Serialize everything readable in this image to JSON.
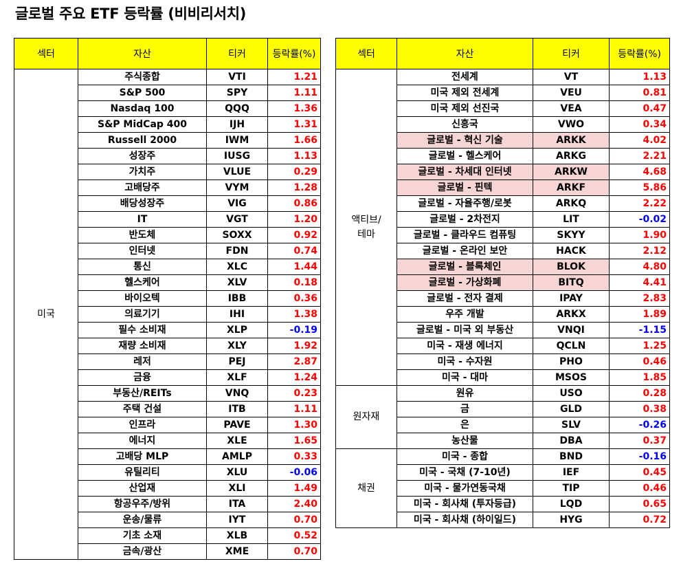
{
  "title": "글로벌 주요 ETF 등락률 (비비리서치)",
  "colors": {
    "header_bg": "#ffff00",
    "positive": "#ff0000",
    "negative": "#0000ff",
    "highlight": "#f8d5d5"
  },
  "headers": {
    "sector": "섹터",
    "asset": "자산",
    "ticker": "티커",
    "rate": "등락률(%)"
  },
  "left_table": {
    "groups": [
      {
        "sector": "미국",
        "rows": [
          {
            "asset": "주식종합",
            "ticker": "VTI",
            "rate": "1.21"
          },
          {
            "asset": "S&P 500",
            "ticker": "SPY",
            "rate": "1.11"
          },
          {
            "asset": "Nasdaq 100",
            "ticker": "QQQ",
            "rate": "1.36"
          },
          {
            "asset": "S&P MidCap 400",
            "ticker": "IJH",
            "rate": "1.31"
          },
          {
            "asset": "Russell 2000",
            "ticker": "IWM",
            "rate": "1.66"
          },
          {
            "asset": "성장주",
            "ticker": "IUSG",
            "rate": "1.13"
          },
          {
            "asset": "가치주",
            "ticker": "VLUE",
            "rate": "0.29"
          },
          {
            "asset": "고배당주",
            "ticker": "VYM",
            "rate": "1.28"
          },
          {
            "asset": "배당성장주",
            "ticker": "VIG",
            "rate": "0.86"
          },
          {
            "asset": "IT",
            "ticker": "VGT",
            "rate": "1.20"
          },
          {
            "asset": "반도체",
            "ticker": "SOXX",
            "rate": "0.92"
          },
          {
            "asset": "인터넷",
            "ticker": "FDN",
            "rate": "0.74"
          },
          {
            "asset": "통신",
            "ticker": "XLC",
            "rate": "1.44"
          },
          {
            "asset": "헬스케어",
            "ticker": "XLV",
            "rate": "0.18"
          },
          {
            "asset": "바이오텍",
            "ticker": "IBB",
            "rate": "0.36"
          },
          {
            "asset": "의료기기",
            "ticker": "IHI",
            "rate": "1.38"
          },
          {
            "asset": "필수 소비재",
            "ticker": "XLP",
            "rate": "-0.19"
          },
          {
            "asset": "재량 소비재",
            "ticker": "XLY",
            "rate": "1.92"
          },
          {
            "asset": "레저",
            "ticker": "PEJ",
            "rate": "2.87"
          },
          {
            "asset": "금융",
            "ticker": "XLF",
            "rate": "1.24"
          },
          {
            "asset": "부동산/REITs",
            "ticker": "VNQ",
            "rate": "0.23"
          },
          {
            "asset": "주택 건설",
            "ticker": "ITB",
            "rate": "1.11"
          },
          {
            "asset": "인프라",
            "ticker": "PAVE",
            "rate": "1.30"
          },
          {
            "asset": "에너지",
            "ticker": "XLE",
            "rate": "1.65"
          },
          {
            "asset": "고배당 MLP",
            "ticker": "AMLP",
            "rate": "0.33"
          },
          {
            "asset": "유틸리티",
            "ticker": "XLU",
            "rate": "-0.06"
          },
          {
            "asset": "산업재",
            "ticker": "XLI",
            "rate": "1.49"
          },
          {
            "asset": "항공우주/방위",
            "ticker": "ITA",
            "rate": "2.40"
          },
          {
            "asset": "운송/물류",
            "ticker": "IYT",
            "rate": "0.70"
          },
          {
            "asset": "기초 소재",
            "ticker": "XLB",
            "rate": "0.52"
          },
          {
            "asset": "금속/광산",
            "ticker": "XME",
            "rate": "0.70"
          }
        ]
      }
    ]
  },
  "right_table": {
    "groups": [
      {
        "sector": "액티브/\n테마",
        "rows": [
          {
            "asset": "전세계",
            "ticker": "VT",
            "rate": "1.13"
          },
          {
            "asset": "미국 제외 전세계",
            "ticker": "VEU",
            "rate": "0.81"
          },
          {
            "asset": "미국 제외 선진국",
            "ticker": "VEA",
            "rate": "0.47"
          },
          {
            "asset": "신흥국",
            "ticker": "VWO",
            "rate": "0.34"
          },
          {
            "asset": "글로벌 - 혁신 기술",
            "ticker": "ARKK",
            "rate": "4.02",
            "highlight": true
          },
          {
            "asset": "글로벌 - 헬스케어",
            "ticker": "ARKG",
            "rate": "2.21"
          },
          {
            "asset": "글로벌 - 차세대 인터넷",
            "ticker": "ARKW",
            "rate": "4.68",
            "highlight": true
          },
          {
            "asset": "글로벌 - 핀텍",
            "ticker": "ARKF",
            "rate": "5.86",
            "highlight": true
          },
          {
            "asset": "글로벌 - 자율주행/로봇",
            "ticker": "ARKQ",
            "rate": "2.22"
          },
          {
            "asset": "글로벌 - 2차전지",
            "ticker": "LIT",
            "rate": "-0.02"
          },
          {
            "asset": "글로벌 - 클라우드 컴퓨팅",
            "ticker": "SKYY",
            "rate": "1.90"
          },
          {
            "asset": "글로벌 - 온라인 보안",
            "ticker": "HACK",
            "rate": "2.12"
          },
          {
            "asset": "글로벌 - 블록체인",
            "ticker": "BLOK",
            "rate": "4.80",
            "highlight": true
          },
          {
            "asset": "글로벌 - 가상화폐",
            "ticker": "BITQ",
            "rate": "4.41",
            "highlight": true
          },
          {
            "asset": "글로벌 - 전자 결제",
            "ticker": "IPAY",
            "rate": "2.83"
          },
          {
            "asset": "우주 개발",
            "ticker": "ARKX",
            "rate": "1.89"
          },
          {
            "asset": "글로벌 - 미국 외 부동산",
            "ticker": "VNQI",
            "rate": "-1.15"
          },
          {
            "asset": "미국 - 재생 에너지",
            "ticker": "QCLN",
            "rate": "1.25"
          },
          {
            "asset": "미국 - 수자원",
            "ticker": "PHO",
            "rate": "0.46"
          },
          {
            "asset": "미국 - 대마",
            "ticker": "MSOS",
            "rate": "1.85"
          }
        ]
      },
      {
        "sector": "원자재",
        "rows": [
          {
            "asset": "원유",
            "ticker": "USO",
            "rate": "0.28"
          },
          {
            "asset": "금",
            "ticker": "GLD",
            "rate": "0.38"
          },
          {
            "asset": "은",
            "ticker": "SLV",
            "rate": "-0.26"
          },
          {
            "asset": "농산물",
            "ticker": "DBA",
            "rate": "0.37"
          }
        ]
      },
      {
        "sector": "채권",
        "rows": [
          {
            "asset": "미국 - 종합",
            "ticker": "BND",
            "rate": "-0.16"
          },
          {
            "asset": "미국 - 국채 (7-10년)",
            "ticker": "IEF",
            "rate": "0.45"
          },
          {
            "asset": "미국 - 물가연동국채",
            "ticker": "TIP",
            "rate": "0.46"
          },
          {
            "asset": "미국 - 회사채 (투자등급)",
            "ticker": "LQD",
            "rate": "0.65"
          },
          {
            "asset": "미국 - 회사채 (하이일드)",
            "ticker": "HYG",
            "rate": "0.72"
          }
        ]
      }
    ]
  }
}
